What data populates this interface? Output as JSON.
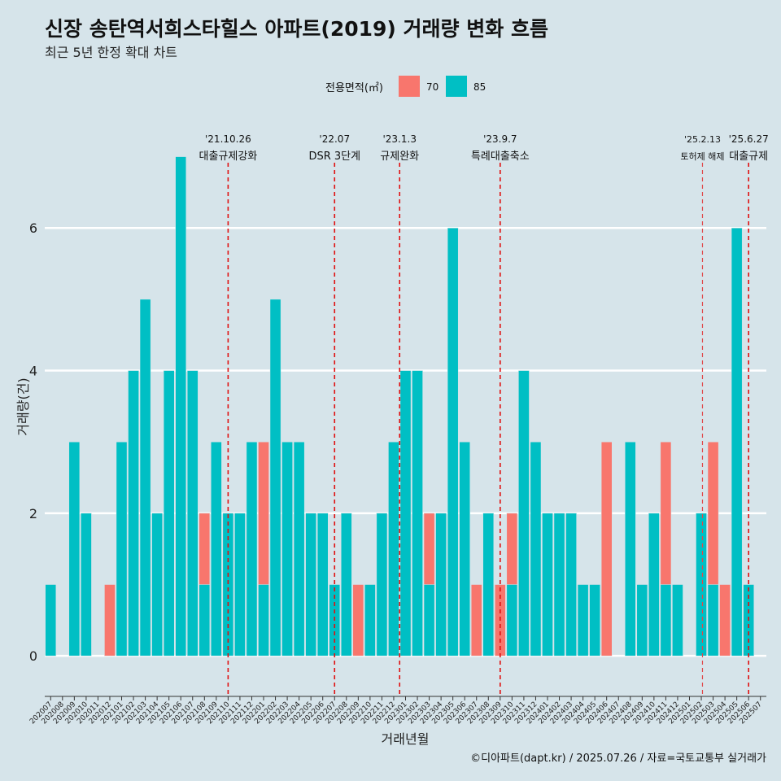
{
  "chart_data": {
    "type": "bar",
    "title": "신장 송탄역서희스타힐스 아파트(2019) 거래량 변화 흐름",
    "subtitle": "최근 5년 한정 확대 차트",
    "xlabel": "거래년월",
    "ylabel": "거래량(건)",
    "ylim": [
      -0.5,
      7.6
    ],
    "yticks": [
      0,
      2,
      4,
      6
    ],
    "grid": true,
    "legend": {
      "title": "전용면적(㎡)",
      "position": "top",
      "entries": [
        {
          "label": "70",
          "color": "#f8766d"
        },
        {
          "label": "85",
          "color": "#00bfc4"
        }
      ]
    },
    "categories": [
      "202007",
      "202008",
      "202009",
      "202010",
      "202011",
      "202012",
      "202101",
      "202102",
      "202103",
      "202104",
      "202105",
      "202106",
      "202107",
      "202108",
      "202109",
      "202110",
      "202111",
      "202112",
      "202201",
      "202202",
      "202203",
      "202204",
      "202205",
      "202206",
      "202207",
      "202208",
      "202209",
      "202210",
      "202211",
      "202212",
      "202301",
      "202302",
      "202303",
      "202304",
      "202305",
      "202306",
      "202307",
      "202308",
      "202309",
      "202310",
      "202311",
      "202312",
      "202401",
      "202402",
      "202403",
      "202404",
      "202405",
      "202406",
      "202407",
      "202408",
      "202409",
      "202410",
      "202411",
      "202412",
      "202501",
      "202502",
      "202503",
      "202504",
      "202505",
      "202506",
      "202507"
    ],
    "series": [
      {
        "name": "70",
        "color": "#f8766d",
        "values": [
          1,
          0,
          0,
          0,
          0,
          1,
          0,
          0,
          1,
          1,
          2,
          0,
          3,
          2,
          1,
          2,
          0,
          2,
          3,
          0,
          3,
          0,
          2,
          2,
          1,
          0,
          1,
          1,
          2,
          0,
          0,
          1,
          2,
          2,
          0,
          0,
          1,
          0,
          1,
          2,
          1,
          1,
          1,
          2,
          1,
          0,
          1,
          3,
          0,
          1,
          0,
          0,
          3,
          1,
          0,
          0,
          3,
          1,
          0,
          1,
          0
        ]
      },
      {
        "name": "85",
        "color": "#00bfc4",
        "values": [
          1,
          0,
          3,
          2,
          0,
          0,
          3,
          4,
          5,
          2,
          4,
          7,
          4,
          1,
          3,
          2,
          2,
          3,
          1,
          5,
          3,
          3,
          2,
          2,
          1,
          2,
          0,
          1,
          2,
          3,
          4,
          4,
          1,
          2,
          6,
          3,
          0,
          2,
          0,
          1,
          4,
          3,
          2,
          2,
          2,
          1,
          1,
          0,
          0,
          3,
          1,
          2,
          1,
          1,
          0,
          2,
          1,
          0,
          6,
          1,
          0
        ]
      }
    ],
    "events": [
      {
        "date": "'21.10.26",
        "label": "대출규제강화",
        "at": "202110"
      },
      {
        "date": "'22.07",
        "label": "DSR 3단계",
        "at": "202207"
      },
      {
        "date": "'23.1.3",
        "label": "규제완화",
        "at": "202301"
      },
      {
        "date": "'23.9.7",
        "label": "특례대출축소",
        "at": "202309"
      },
      {
        "date": "'25.2.13",
        "label": "토허제 해제",
        "at": "202502"
      },
      {
        "date": "'25.6.27",
        "label": "대출규제",
        "at": "202506"
      }
    ],
    "caption": "©디아파트(dapt.kr) / 2025.07.26 / 자료=국토교통부 실거래가"
  }
}
